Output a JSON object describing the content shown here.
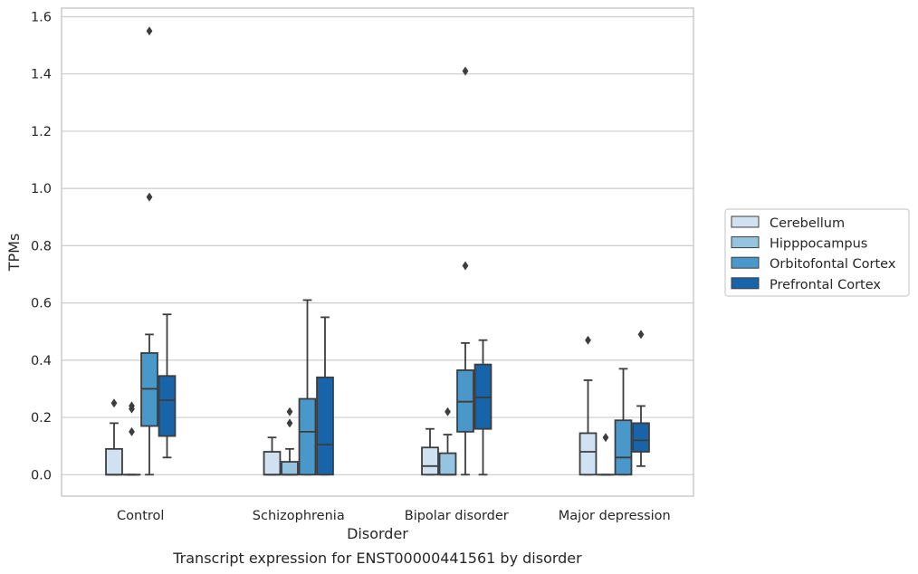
{
  "chart_data": {
    "type": "box",
    "categories": [
      "Control",
      "Schizophrenia",
      "Bipolar disorder",
      "Major depression"
    ],
    "xlabel": "Disorder",
    "ylabel": "TPMs",
    "caption": "Transcript expression for ENST00000441561 by disorder",
    "ylim": [
      -0.075,
      1.63
    ],
    "yticks": [
      0.0,
      0.2,
      0.4,
      0.6,
      0.8,
      1.0,
      1.2,
      1.4,
      1.6
    ],
    "ytick_labels": [
      "0.0",
      "0.2",
      "0.4",
      "0.6",
      "0.8",
      "1.0",
      "1.2",
      "1.4",
      "1.6"
    ],
    "grid": "horizontal",
    "legend_placement": "outside-right",
    "series": [
      {
        "name": "Cerebellum",
        "color": "#d0e1f2",
        "boxes": [
          {
            "q1": 0.0,
            "median": 0.0,
            "q3": 0.09,
            "whisker_low": 0.0,
            "whisker_high": 0.18,
            "outliers": [
              0.25
            ]
          },
          {
            "q1": 0.0,
            "median": 0.0,
            "q3": 0.08,
            "whisker_low": 0.0,
            "whisker_high": 0.13,
            "outliers": []
          },
          {
            "q1": 0.0,
            "median": 0.03,
            "q3": 0.095,
            "whisker_low": 0.0,
            "whisker_high": 0.16,
            "outliers": []
          },
          {
            "q1": 0.0,
            "median": 0.08,
            "q3": 0.145,
            "whisker_low": 0.0,
            "whisker_high": 0.33,
            "outliers": [
              0.47
            ]
          }
        ]
      },
      {
        "name": "Hipppocampus",
        "color": "#94c4df",
        "boxes": [
          {
            "q1": 0.0,
            "median": 0.0,
            "q3": 0.0,
            "whisker_low": 0.0,
            "whisker_high": 0.0,
            "outliers": [
              0.15,
              0.23,
              0.24
            ]
          },
          {
            "q1": 0.0,
            "median": 0.0,
            "q3": 0.045,
            "whisker_low": 0.0,
            "whisker_high": 0.09,
            "outliers": [
              0.18,
              0.22
            ]
          },
          {
            "q1": 0.0,
            "median": 0.0,
            "q3": 0.075,
            "whisker_low": 0.0,
            "whisker_high": 0.14,
            "outliers": [
              0.22
            ]
          },
          {
            "q1": 0.0,
            "median": 0.0,
            "q3": 0.0,
            "whisker_low": 0.0,
            "whisker_high": 0.0,
            "outliers": [
              0.13
            ]
          }
        ]
      },
      {
        "name": "Orbitofontal Cortex",
        "color": "#4a98c9",
        "boxes": [
          {
            "q1": 0.17,
            "median": 0.3,
            "q3": 0.425,
            "whisker_low": 0.0,
            "whisker_high": 0.49,
            "outliers": [
              0.97,
              1.55
            ]
          },
          {
            "q1": 0.0,
            "median": 0.15,
            "q3": 0.265,
            "whisker_low": 0.0,
            "whisker_high": 0.61,
            "outliers": []
          },
          {
            "q1": 0.15,
            "median": 0.255,
            "q3": 0.365,
            "whisker_low": 0.0,
            "whisker_high": 0.46,
            "outliers": [
              0.73,
              1.41
            ]
          },
          {
            "q1": 0.0,
            "median": 0.06,
            "q3": 0.19,
            "whisker_low": 0.0,
            "whisker_high": 0.37,
            "outliers": []
          }
        ]
      },
      {
        "name": "Prefrontal Cortex",
        "color": "#1764ab",
        "boxes": [
          {
            "q1": 0.135,
            "median": 0.26,
            "q3": 0.345,
            "whisker_low": 0.06,
            "whisker_high": 0.56,
            "outliers": []
          },
          {
            "q1": 0.0,
            "median": 0.105,
            "q3": 0.34,
            "whisker_low": 0.0,
            "whisker_high": 0.55,
            "outliers": []
          },
          {
            "q1": 0.16,
            "median": 0.27,
            "q3": 0.385,
            "whisker_low": 0.0,
            "whisker_high": 0.47,
            "outliers": []
          },
          {
            "q1": 0.08,
            "median": 0.12,
            "q3": 0.18,
            "whisker_low": 0.03,
            "whisker_high": 0.24,
            "outliers": [
              0.49
            ]
          }
        ]
      }
    ]
  }
}
